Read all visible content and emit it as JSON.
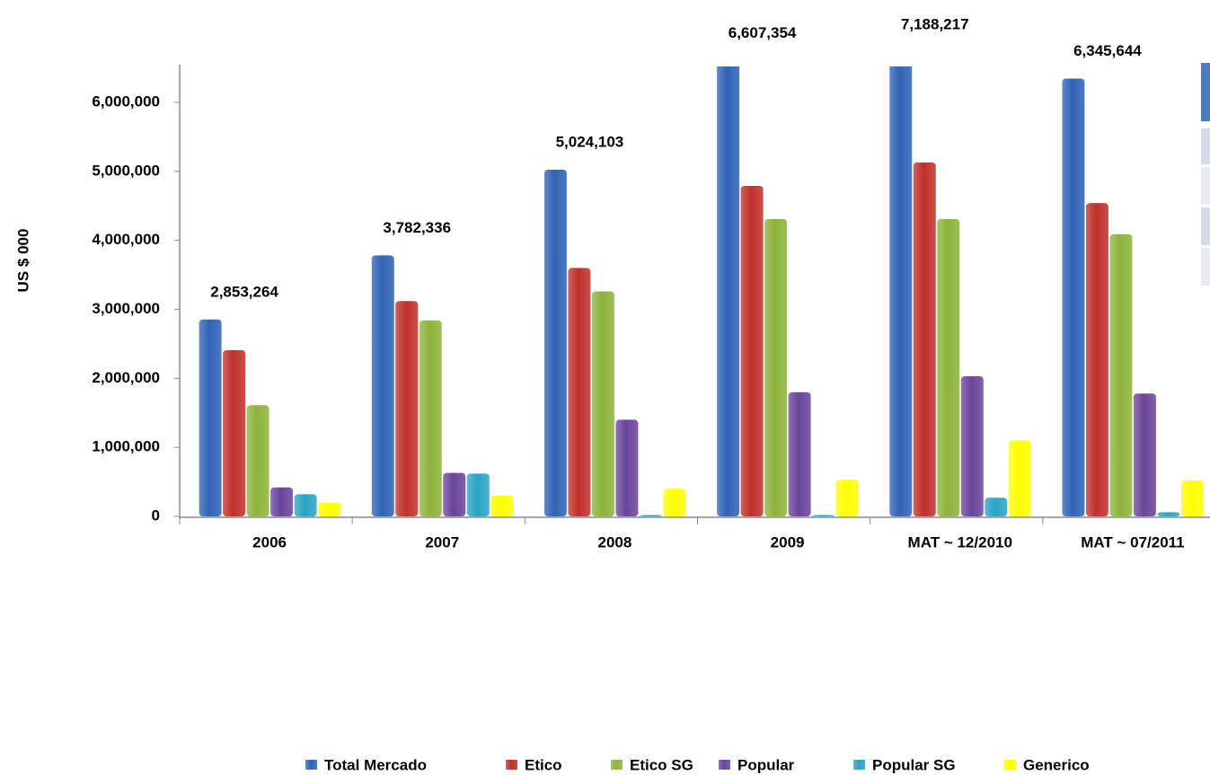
{
  "chart_data": {
    "type": "bar",
    "y_label": "US $ 000",
    "categories": [
      "2006",
      "2007",
      "2008",
      "2009",
      "MAT ~ 12/2010",
      "MAT ~ 07/2011"
    ],
    "series": [
      {
        "name": "Total Mercado",
        "color": "#2e63b5",
        "values": [
          2853264,
          3782336,
          5024103,
          6607354,
          7188217,
          6345644
        ],
        "value_labels": [
          "2,853,264",
          "3,782,336",
          "5,024,103",
          "6,607,354",
          "7,188,217",
          "6,345,644"
        ]
      },
      {
        "name": "Etico",
        "color": "#c0302a",
        "values": [
          2410000,
          3120000,
          3600000,
          4790000,
          5130000,
          4540000
        ]
      },
      {
        "name": "Etico SG",
        "color": "#8db33a",
        "values": [
          1610000,
          2840000,
          3260000,
          4310000,
          4310000,
          4090000
        ]
      },
      {
        "name": "Popular",
        "color": "#6a449a",
        "values": [
          420000,
          630000,
          1400000,
          1800000,
          2030000,
          1780000
        ]
      },
      {
        "name": "Popular SG",
        "color": "#2aa3c4",
        "values": [
          320000,
          620000,
          20000,
          20000,
          270000,
          60000
        ]
      },
      {
        "name": "Generico",
        "color": "#ffff00",
        "values": [
          200000,
          300000,
          400000,
          530000,
          1100000,
          520000
        ]
      }
    ],
    "ylim": [
      0,
      6500000
    ],
    "yticks": [
      {
        "value": 0,
        "label": "0"
      },
      {
        "value": 1000000,
        "label": "1,000,000"
      },
      {
        "value": 2000000,
        "label": "2,000,000"
      },
      {
        "value": 3000000,
        "label": "3,000,000"
      },
      {
        "value": 4000000,
        "label": "4,000,000"
      },
      {
        "value": 5000000,
        "label": "5,000,000"
      },
      {
        "value": 6000000,
        "label": "6,000,000"
      }
    ]
  }
}
